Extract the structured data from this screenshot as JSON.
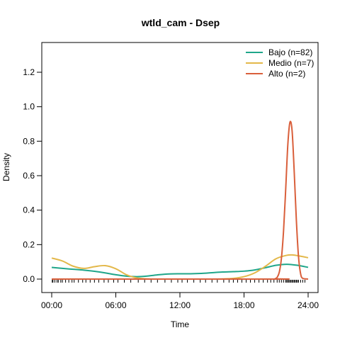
{
  "chart_data": {
    "type": "line",
    "title": "wtld_cam - Dsep",
    "xlabel": "Time",
    "ylabel": "Density",
    "xlim": [
      0,
      24
    ],
    "ylim": [
      0,
      1.3
    ],
    "x_ticks": [
      0,
      6,
      12,
      18,
      24
    ],
    "x_tick_labels": [
      "00:00",
      "06:00",
      "12:00",
      "18:00",
      "24:00"
    ],
    "y_ticks": [
      0.0,
      0.2,
      0.4,
      0.6,
      0.8,
      1.0,
      1.2
    ],
    "y_tick_labels": [
      "0.0",
      "0.2",
      "0.4",
      "0.6",
      "0.8",
      "1.0",
      "1.2"
    ],
    "grid": false,
    "legend_position": "top-right",
    "series": [
      {
        "name": "Bajo (n=82)",
        "color": "#1fa68a",
        "x": [
          0,
          1,
          2,
          3,
          4,
          5,
          6,
          7,
          8,
          9,
          10,
          11,
          12,
          13,
          14,
          15,
          16,
          17,
          18,
          19,
          20,
          21,
          22,
          23,
          24
        ],
        "y": [
          0.068,
          0.062,
          0.057,
          0.052,
          0.045,
          0.036,
          0.025,
          0.017,
          0.014,
          0.018,
          0.025,
          0.03,
          0.031,
          0.031,
          0.033,
          0.037,
          0.041,
          0.043,
          0.046,
          0.053,
          0.066,
          0.08,
          0.086,
          0.08,
          0.068
        ]
      },
      {
        "name": "Medio (n=7)",
        "color": "#e3b84a",
        "x": [
          0,
          1,
          2,
          3,
          4,
          5,
          6,
          7,
          8,
          9,
          10,
          11,
          12,
          13,
          14,
          15,
          16,
          17,
          18,
          19,
          20,
          21,
          22,
          22.5,
          23,
          24
        ],
        "y": [
          0.122,
          0.105,
          0.075,
          0.062,
          0.072,
          0.078,
          0.06,
          0.025,
          0.006,
          0.001,
          0.0,
          0.0,
          0.0,
          0.0,
          0.0,
          0.0,
          0.001,
          0.004,
          0.014,
          0.036,
          0.074,
          0.118,
          0.138,
          0.14,
          0.136,
          0.124
        ]
      },
      {
        "name": "Alto (n=2)",
        "color": "#d95f3b",
        "x": [
          0,
          20.6,
          20.9,
          21.1,
          21.3,
          21.5,
          21.7,
          21.9,
          22.1,
          22.3,
          22.5,
          22.7,
          22.9,
          23.1,
          23.3,
          23.5,
          24
        ],
        "y": [
          0.0,
          0.0,
          0.002,
          0.01,
          0.04,
          0.12,
          0.28,
          0.52,
          0.78,
          0.91,
          0.86,
          0.62,
          0.34,
          0.13,
          0.03,
          0.004,
          0.0
        ]
      }
    ],
    "rug_x": [
      0.05,
      0.12,
      0.3,
      0.5,
      0.62,
      0.85,
      1.0,
      1.3,
      1.6,
      1.9,
      2.1,
      2.5,
      2.9,
      3.2,
      3.6,
      4.0,
      4.4,
      4.9,
      5.3,
      5.8,
      6.2,
      6.8,
      7.4,
      8.1,
      8.7,
      9.3,
      9.9,
      10.6,
      11.2,
      11.8,
      12.2,
      12.7,
      13.3,
      13.9,
      14.4,
      15.0,
      15.5,
      16.1,
      16.6,
      17.0,
      17.4,
      17.8,
      18.2,
      18.6,
      19.0,
      19.4,
      19.8,
      20.2,
      20.5,
      20.8,
      21.1,
      21.3,
      21.5,
      21.7,
      21.9,
      22.0,
      22.1,
      22.2,
      22.3,
      22.4,
      22.5,
      22.6,
      22.7,
      22.8,
      22.9,
      23.0,
      23.1,
      23.3,
      23.5,
      23.7
    ]
  }
}
